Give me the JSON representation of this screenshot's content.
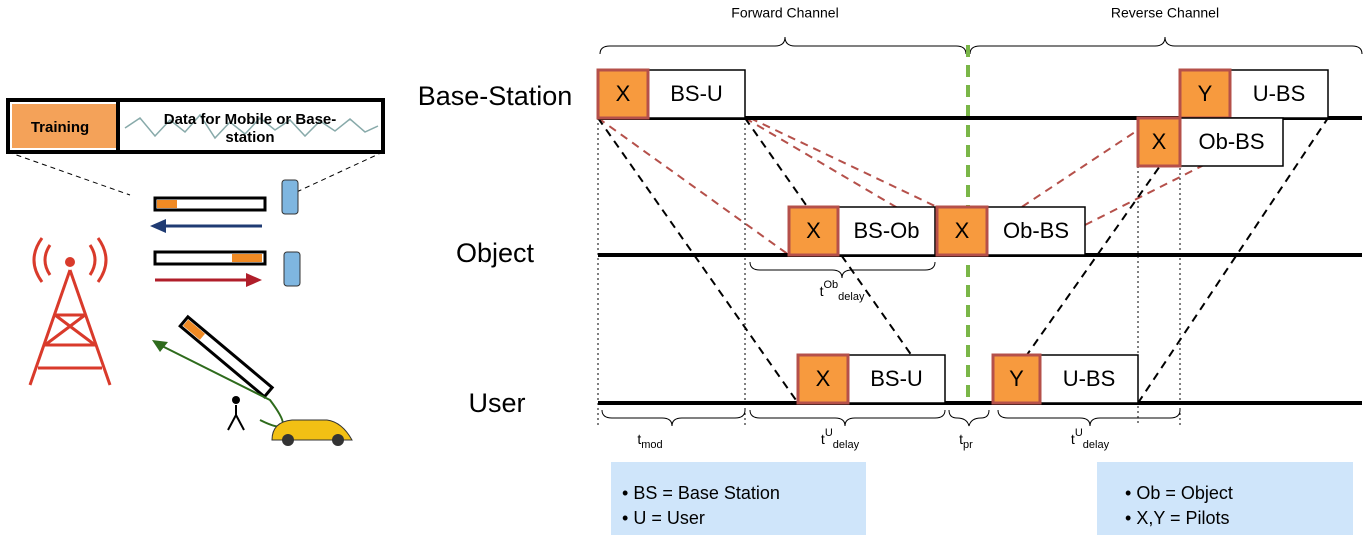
{
  "header": {
    "forward": "Forward Channel",
    "reverse": "Reverse Channel"
  },
  "rows": [
    {
      "label": "Base-Station"
    },
    {
      "label": "Object"
    },
    {
      "label": "User"
    }
  ],
  "packets": [
    {
      "pilot": "X",
      "label": "BS-U"
    },
    {
      "pilot": "Y",
      "label": "U-BS"
    },
    {
      "pilot": "X",
      "label": "Ob-BS"
    },
    {
      "pilot": "X",
      "label": "BS-Ob"
    },
    {
      "pilot": "X",
      "label": "Ob-BS"
    },
    {
      "pilot": "X",
      "label": "BS-U"
    },
    {
      "pilot": "Y",
      "label": "U-BS"
    }
  ],
  "intervals": [
    {
      "base": "t",
      "sub": "mod"
    },
    {
      "base": "t",
      "sup": "U",
      "sub": "delay"
    },
    {
      "base": "t",
      "sub": "pr"
    },
    {
      "base": "t",
      "sup": "U",
      "sub": "delay"
    },
    {
      "base": "t",
      "sup": "Ob",
      "sub": "delay"
    }
  ],
  "frame": {
    "training": "Training",
    "data": [
      "Data for Mobile or Base-",
      "station"
    ]
  },
  "legends": [
    [
      "BS = Base Station",
      "U = User"
    ],
    [
      "Ob = Object",
      "X,Y = Pilots"
    ]
  ]
}
